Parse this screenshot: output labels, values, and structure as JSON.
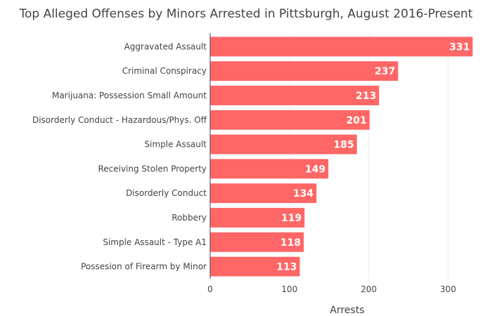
{
  "chart_data": {
    "type": "bar",
    "orientation": "horizontal",
    "title": "Top Alleged Offenses by Minors Arrested in Pittsburgh, August 2016-Present",
    "xlabel": "Arrests",
    "ylabel": "",
    "xlim": [
      0,
      335
    ],
    "xticks": [
      0,
      100,
      200,
      300
    ],
    "grid": "vertical",
    "bar_color": "#ff6666",
    "value_label_color": "#ffffff",
    "categories": [
      "Aggravated Assault",
      "Criminal Conspiracy",
      "Marijuana: Possession Small Amount",
      "Disorderly Conduct - Hazardous/Phys. Off",
      "Simple Assault",
      "Receiving Stolen Property",
      "Disorderly Conduct",
      "Robbery",
      "Simple Assault - Type A1",
      "Possesion of Firearm by Minor"
    ],
    "values": [
      331,
      237,
      213,
      201,
      185,
      149,
      134,
      119,
      118,
      113
    ]
  }
}
